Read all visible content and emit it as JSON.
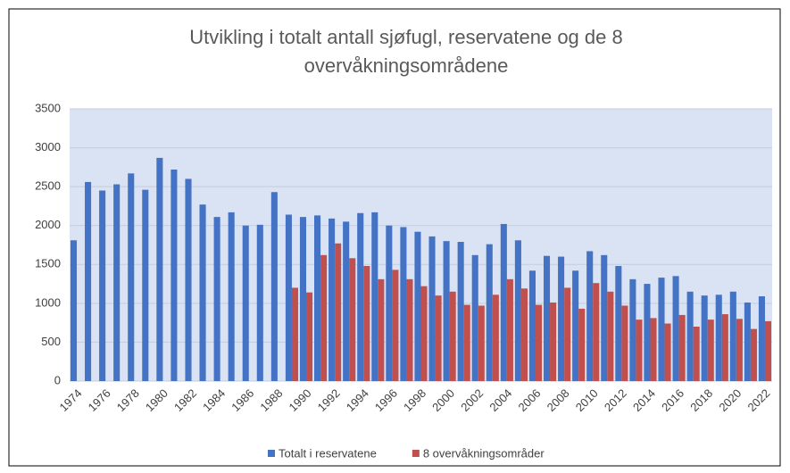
{
  "chart_data": {
    "type": "bar",
    "title": "Utvikling i totalt antall sjøfugl, reservatene og de 8 overvåkningsområdene",
    "categories": [
      "1974",
      null,
      "1976",
      null,
      "1978",
      null,
      "1980",
      null,
      "1982",
      null,
      "1984",
      null,
      "1986",
      null,
      "1988",
      null,
      "1990",
      null,
      "1992",
      null,
      "1994",
      null,
      "1996",
      null,
      "1998",
      null,
      "2000",
      null,
      "2002",
      null,
      "2004",
      null,
      "2006",
      null,
      "2008",
      null,
      "2010",
      null,
      "2012",
      null,
      "2014",
      null,
      "2016",
      null,
      "2018",
      null,
      "2020",
      null,
      "2022"
    ],
    "series": [
      {
        "name": "Totalt i reservatene",
        "color": "#4472c4",
        "values": [
          1810,
          2560,
          2450,
          2530,
          2670,
          2460,
          2870,
          2720,
          2600,
          2270,
          2110,
          2170,
          2000,
          2010,
          2430,
          2140,
          2110,
          2130,
          2090,
          2050,
          2160,
          2170,
          2000,
          1980,
          1920,
          1860,
          1800,
          1790,
          1620,
          1760,
          2020,
          1810,
          1420,
          1610,
          1600,
          1420,
          1670,
          1620,
          1480,
          1310,
          1250,
          1330,
          1350,
          1150,
          1100,
          1110,
          1150,
          1010,
          1090
        ]
      },
      {
        "name": "8 overvåkningsområder",
        "color": "#c0504d",
        "values": [
          null,
          null,
          null,
          null,
          null,
          null,
          null,
          null,
          null,
          null,
          null,
          null,
          null,
          null,
          null,
          1200,
          1140,
          1620,
          1770,
          1580,
          1480,
          1310,
          1430,
          1310,
          1220,
          1100,
          1150,
          980,
          970,
          1110,
          1310,
          1190,
          980,
          1010,
          1200,
          930,
          1260,
          1150,
          970,
          790,
          810,
          740,
          850,
          700,
          790,
          860,
          800,
          670,
          770
        ]
      }
    ],
    "ylim": [
      0,
      3500
    ],
    "yticks": [
      0,
      500,
      1000,
      1500,
      2000,
      2500,
      3000,
      3500
    ],
    "grid": true,
    "legend": "bottom"
  }
}
